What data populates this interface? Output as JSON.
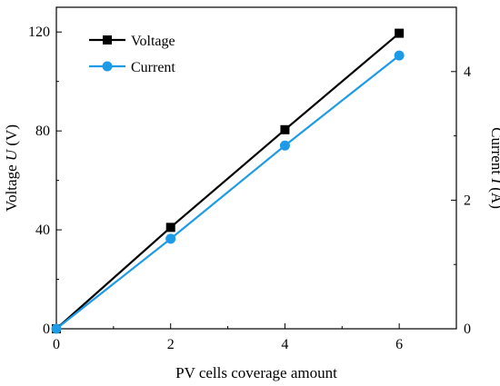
{
  "chart_data": {
    "type": "line",
    "x": [
      0,
      2,
      4,
      6
    ],
    "xlabel": "PV cells coverage amount",
    "xlim": [
      0,
      7
    ],
    "xticks": [
      "0",
      "2",
      "4",
      "6"
    ],
    "series": [
      {
        "name": "Voltage",
        "axis": "left",
        "values": [
          0,
          41,
          80.5,
          119.5
        ],
        "color": "#000000",
        "marker": "square"
      },
      {
        "name": "Current",
        "axis": "right",
        "values": [
          0,
          1.4,
          2.85,
          4.25
        ],
        "color": "#1E9BE6",
        "marker": "circle"
      }
    ],
    "ylabel_left": {
      "prefix": "Voltage ",
      "var": "U",
      "unit": " (V)"
    },
    "ylim_left": [
      0,
      130
    ],
    "yticks_left": [
      "0",
      "40",
      "80",
      "120"
    ],
    "ylabel_right": {
      "prefix": "Current ",
      "var": "I",
      "unit": " (A)"
    },
    "ylim_right": [
      0,
      5
    ],
    "yticks_right": [
      "0",
      "2",
      "4"
    ],
    "legend_position": "top-left",
    "grid": false
  }
}
